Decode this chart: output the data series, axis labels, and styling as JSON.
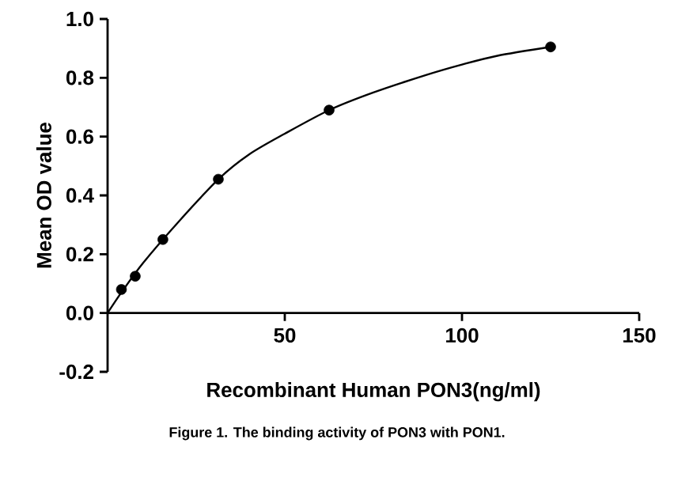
{
  "chart_data": {
    "type": "scatter",
    "xlabel": "Recombinant Human PON3(ng/ml)",
    "ylabel": "Mean OD value",
    "annotations": [
      "Figure 1. The binding activity of PON3 with PON1."
    ],
    "series": [
      {
        "color": "#000000",
        "marker": "circle",
        "x": [
          3.9,
          7.8,
          15.6,
          31.25,
          62.5,
          125
        ],
        "values": [
          0.08,
          0.125,
          0.25,
          0.455,
          0.69,
          0.905
        ]
      },
      {
        "type": "line",
        "color": "#000000",
        "x": [
          0,
          3.9,
          10,
          20,
          31.25,
          40,
          50,
          62.5,
          75,
          90,
          100,
          110,
          125
        ],
        "values": [
          0,
          0.07,
          0.17,
          0.31,
          0.455,
          0.54,
          0.61,
          0.69,
          0.75,
          0.81,
          0.845,
          0.875,
          0.905
        ]
      }
    ],
    "xlim": [
      0,
      150
    ],
    "xticks": [
      50,
      100,
      150
    ],
    "ylim": [
      -0.2,
      1.0
    ],
    "yticks": [
      {
        "value": -0.2,
        "label": "-0.2"
      },
      {
        "value": 0,
        "label": "0.0"
      },
      {
        "value": 0.2,
        "label": "0.2"
      },
      {
        "value": 0.4,
        "label": "0.4"
      },
      {
        "value": 0.6,
        "label": "0.6"
      },
      {
        "value": 0.8,
        "label": "0.8"
      },
      {
        "value": 1.0,
        "label": "1.0"
      }
    ]
  }
}
